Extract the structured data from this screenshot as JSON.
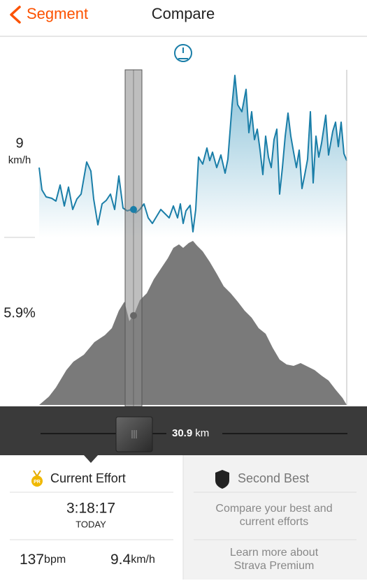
{
  "header": {
    "back": "Segment",
    "title": "Compare"
  },
  "chart": {
    "speed_value": "9",
    "speed_unit": "km/h",
    "grade": "5.9%"
  },
  "slider": {
    "distance": "30.9",
    "unit": "km"
  },
  "current": {
    "badge": "PR",
    "title": "Current Effort",
    "time": "3:18:17",
    "date": "TODAY",
    "heart_rate": "137",
    "heart_rate_unit": "bpm",
    "speed": "9.4",
    "speed_unit": "km/h"
  },
  "second": {
    "title": "Second Best",
    "text_lines": [
      "Compare your best and",
      "current efforts"
    ],
    "link_lines": [
      "Learn more about",
      "Strava Premium"
    ]
  }
}
